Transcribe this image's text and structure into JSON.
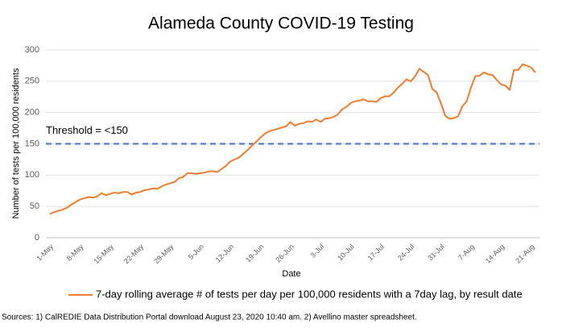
{
  "chart_data": {
    "type": "line",
    "title": "Alameda County COVID-19 Testing",
    "y_label": "Number of tests per 100,000 residents",
    "x_label": "Date",
    "categories": [
      "1-May",
      null,
      null,
      null,
      null,
      null,
      null,
      "8-May",
      null,
      null,
      null,
      null,
      null,
      null,
      "15-May",
      null,
      null,
      null,
      null,
      null,
      null,
      "22-May",
      null,
      null,
      null,
      null,
      null,
      null,
      "29-May",
      null,
      null,
      null,
      null,
      null,
      null,
      "5-Jun",
      null,
      null,
      null,
      null,
      null,
      null,
      "12-Jun",
      null,
      null,
      null,
      null,
      null,
      null,
      "19-Jun",
      null,
      null,
      null,
      null,
      null,
      null,
      "26-Jun",
      null,
      null,
      null,
      null,
      null,
      null,
      "3-Jul",
      null,
      null,
      null,
      null,
      null,
      null,
      "10-Jul",
      null,
      null,
      null,
      null,
      null,
      null,
      "17-Jul",
      null,
      null,
      null,
      null,
      null,
      null,
      "24-Jul",
      null,
      null,
      null,
      null,
      null,
      null,
      "31-Jul",
      null,
      null,
      null,
      null,
      null,
      null,
      "7-Aug",
      null,
      null,
      null,
      null,
      null,
      null,
      "14-Aug",
      null,
      null,
      null,
      null,
      null,
      null,
      "21-Aug",
      null
    ],
    "series": [
      {
        "name": "7-day rolling average # of tests per day per 100,000 residents with a 7day lag, by result date",
        "color": "#ed7d31",
        "values": [
          38,
          41,
          43,
          45,
          48,
          53,
          57,
          61,
          63,
          65,
          64,
          66,
          71,
          68,
          70,
          72,
          71,
          73,
          73,
          69,
          72,
          73,
          76,
          77,
          79,
          78,
          82,
          85,
          87,
          89,
          95,
          97,
          103,
          103,
          102,
          103,
          104,
          106,
          106,
          105,
          110,
          115,
          122,
          125,
          128,
          134,
          140,
          147,
          153,
          160,
          166,
          170,
          172,
          174,
          176,
          178,
          185,
          179,
          182,
          183,
          186,
          185,
          189,
          185,
          190,
          191,
          193,
          197,
          205,
          209,
          215,
          218,
          219,
          221,
          218,
          218,
          217,
          223,
          226,
          226,
          232,
          240,
          246,
          253,
          250,
          258,
          270,
          265,
          260,
          238,
          232,
          215,
          195,
          190,
          191,
          194,
          210,
          218,
          240,
          258,
          259,
          264,
          261,
          260,
          252,
          245,
          243,
          236,
          268,
          268,
          277,
          275,
          272,
          264
        ]
      }
    ],
    "threshold": {
      "value": 150,
      "label": "Threshold = <150",
      "color": "#4472c4"
    },
    "ylim": [
      0,
      300
    ],
    "yticks": [
      0,
      50,
      100,
      150,
      200,
      250,
      300
    ],
    "grid": true,
    "source": "Sources: 1) CalREDIE Data Distribution Portal download August 23, 2020 10:40 am. 2) Avellino master spreadsheet."
  }
}
